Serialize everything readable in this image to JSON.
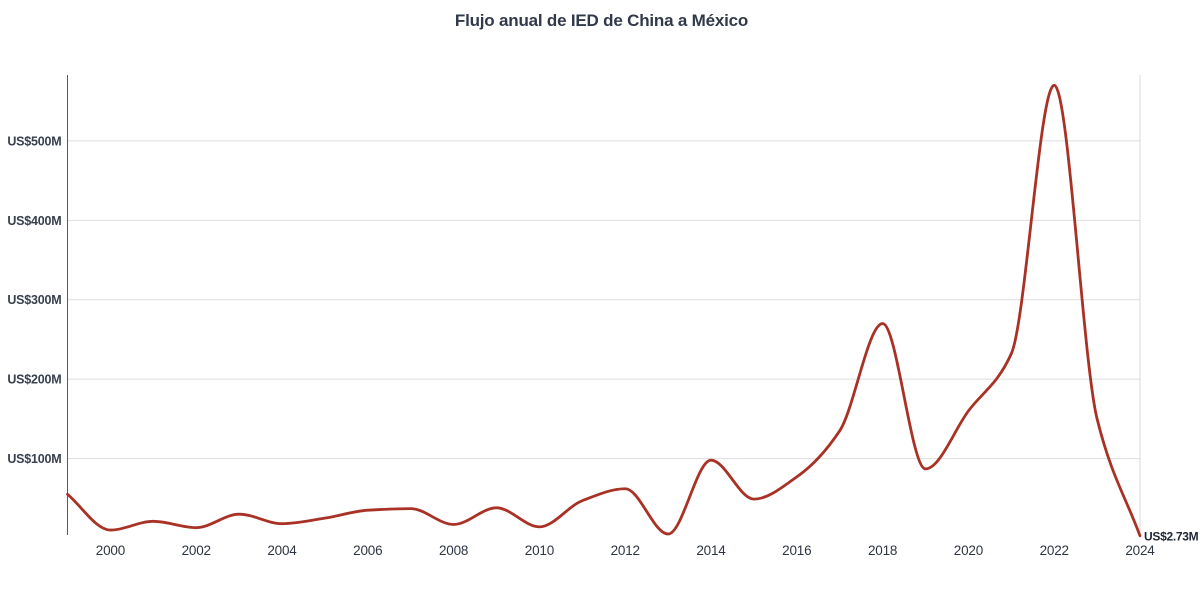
{
  "chart_data": {
    "type": "line",
    "title": "Flujo anual de IED de China a México",
    "xlabel": "",
    "ylabel": "",
    "unit": "US$ millions",
    "x": [
      1999,
      2000,
      2001,
      2002,
      2003,
      2004,
      2005,
      2006,
      2007,
      2008,
      2009,
      2010,
      2011,
      2012,
      2013,
      2014,
      2015,
      2016,
      2017,
      2018,
      2019,
      2020,
      2021,
      2022,
      2023,
      2024
    ],
    "values": [
      55,
      10,
      21,
      13,
      30,
      18,
      25,
      35,
      37,
      17,
      38,
      14,
      47,
      62,
      5,
      98,
      49,
      77,
      135,
      270,
      87,
      160,
      232,
      570,
      150,
      2.73
    ],
    "xlim": [
      1999,
      2024
    ],
    "ylim": [
      0,
      583
    ],
    "grid": true,
    "legend": "none",
    "curve": "smooth",
    "x_ticks": [
      {
        "v": 2000,
        "label": "2000"
      },
      {
        "v": 2002,
        "label": "2002"
      },
      {
        "v": 2004,
        "label": "2004"
      },
      {
        "v": 2006,
        "label": "2006"
      },
      {
        "v": 2008,
        "label": "2008"
      },
      {
        "v": 2010,
        "label": "2010"
      },
      {
        "v": 2012,
        "label": "2012"
      },
      {
        "v": 2014,
        "label": "2014"
      },
      {
        "v": 2016,
        "label": "2016"
      },
      {
        "v": 2018,
        "label": "2018"
      },
      {
        "v": 2020,
        "label": "2020"
      },
      {
        "v": 2022,
        "label": "2022"
      },
      {
        "v": 2024,
        "label": "2024"
      }
    ],
    "y_ticks": [
      {
        "v": 100,
        "label": "US$100M"
      },
      {
        "v": 200,
        "label": "US$200M"
      },
      {
        "v": 300,
        "label": "US$300M"
      },
      {
        "v": 400,
        "label": "US$400M"
      },
      {
        "v": 500,
        "label": "US$500M"
      }
    ],
    "end_label": "US$2.73M"
  },
  "colors": {
    "background": "#ffffff",
    "line": "#a93226",
    "grid": "#dddddd",
    "right_border": "#d8d8d8",
    "y_axis": "#545b68",
    "title_text": "#323a4a",
    "tick_text": "#39414f",
    "end_label_text": "#1f2734"
  }
}
